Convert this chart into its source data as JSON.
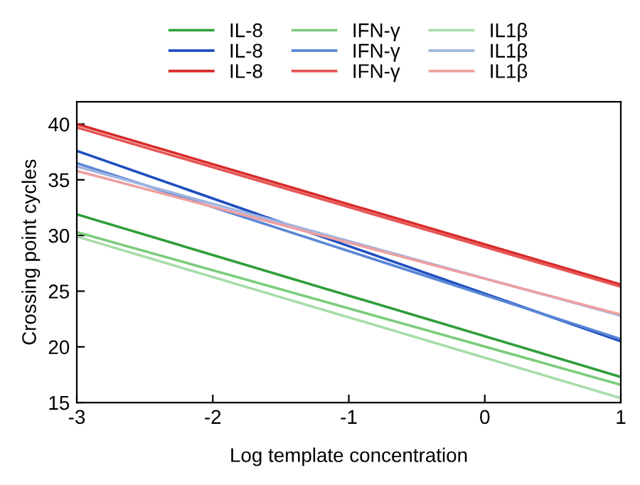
{
  "chart_data": {
    "type": "line",
    "xlabel": "Log template concentration",
    "ylabel": "Crossing point cycles",
    "xlim": [
      -3,
      1
    ],
    "xticks": [
      -3,
      -2,
      -1,
      0,
      1
    ],
    "ylim": [
      15,
      42
    ],
    "yticks": [
      15,
      20,
      25,
      30,
      35,
      40
    ],
    "grid": false,
    "legend": "top",
    "marker": "none",
    "line_style": "solid",
    "x": [
      -3,
      1
    ],
    "series": [
      {
        "name": "IL-8",
        "color": "#2f9e3a",
        "values": [
          31.9,
          17.3
        ]
      },
      {
        "name": "IFN-γ",
        "color": "#7ccc7c",
        "values": [
          30.3,
          16.6
        ]
      },
      {
        "name": "IL1β",
        "color": "#a8dca8",
        "values": [
          29.9,
          15.4
        ]
      },
      {
        "name": "IL-8",
        "color": "#1f4fbf",
        "values": [
          37.6,
          20.5
        ]
      },
      {
        "name": "IFN-γ",
        "color": "#5a86d6",
        "values": [
          36.5,
          20.7
        ]
      },
      {
        "name": "IL1β",
        "color": "#a0b4e0",
        "values": [
          36.2,
          22.8
        ]
      },
      {
        "name": "IL-8",
        "color": "#d92a2a",
        "values": [
          40.0,
          25.6
        ]
      },
      {
        "name": "IFN-γ",
        "color": "#e65555",
        "values": [
          39.7,
          25.4
        ]
      },
      {
        "name": "IL1β",
        "color": "#eea0a0",
        "values": [
          35.8,
          22.9
        ]
      }
    ]
  }
}
